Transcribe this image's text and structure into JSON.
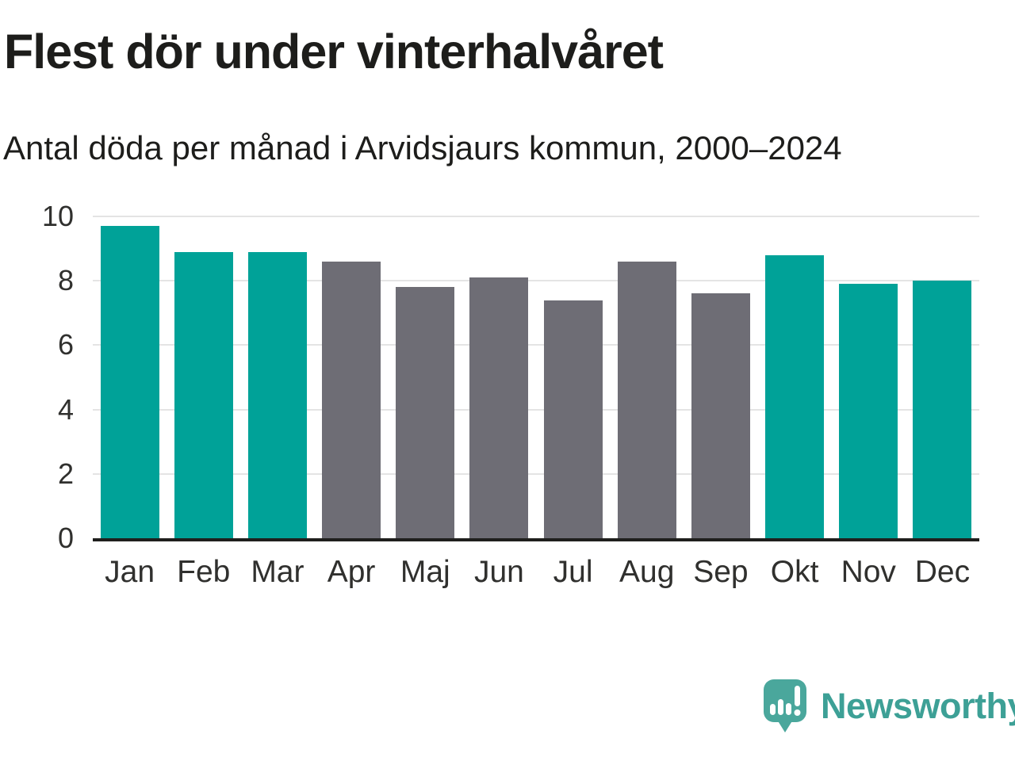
{
  "chart_data": {
    "type": "bar",
    "title": "Flest dör under vinterhalvåret",
    "subtitle": "Antal döda per månad i Arvidsjaurs kommun, 2000–2024",
    "categories": [
      "Jan",
      "Feb",
      "Mar",
      "Apr",
      "Maj",
      "Jun",
      "Jul",
      "Aug",
      "Sep",
      "Okt",
      "Nov",
      "Dec"
    ],
    "values": [
      9.7,
      8.9,
      8.9,
      8.6,
      7.8,
      8.1,
      7.4,
      8.6,
      7.6,
      8.8,
      7.9,
      8.0
    ],
    "bar_groups": [
      "winter",
      "winter",
      "winter",
      "summer",
      "summer",
      "summer",
      "summer",
      "summer",
      "summer",
      "winter",
      "winter",
      "winter"
    ],
    "xlabel": "",
    "ylabel": "",
    "ylim": [
      0,
      10
    ],
    "yticks": [
      0,
      2,
      4,
      6,
      8,
      10
    ],
    "grid": true,
    "legend": false
  },
  "colors": {
    "winter_bar": "#00a298",
    "summer_bar": "#6e6d75",
    "gridline": "#e4e4e4",
    "axis_line": "#1f1f1d",
    "axis_text": "#30302e",
    "title_text": "#1d1d1b",
    "logo_text": "#3da096",
    "logo_icon": "#4aa79c"
  },
  "branding": {
    "logo_text": "Newsworthy"
  }
}
